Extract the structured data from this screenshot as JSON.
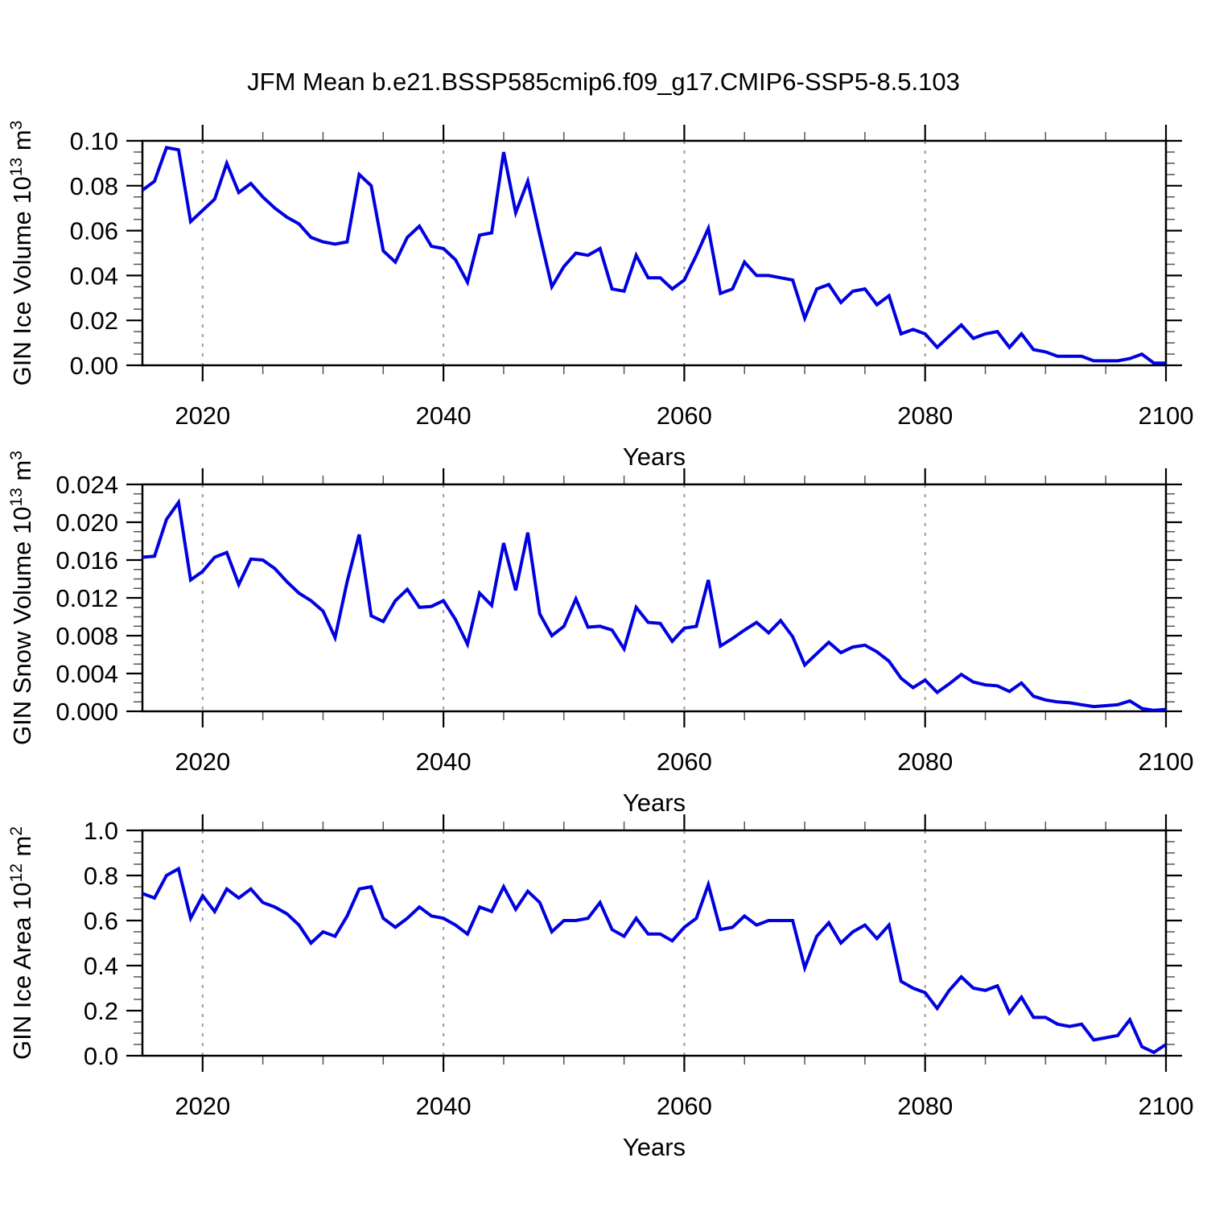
{
  "title": "JFM Mean b.e21.BSSP585cmip6.f09_g17.CMIP6-SSP5-8.5.103",
  "colors": {
    "line": "#0000e0",
    "grid": "#9a9a9a",
    "axis": "#000000",
    "tick_minor": "#555555"
  },
  "chart_data": {
    "type": "line",
    "x_label": "Years",
    "x_range": [
      2015,
      2100
    ],
    "x_major_ticks": [
      2020,
      2040,
      2060,
      2080,
      2100
    ],
    "x_minor_step": 5,
    "grid_x": [
      2020,
      2040,
      2060,
      2080
    ],
    "legend": "none",
    "years": [
      2015,
      2016,
      2017,
      2018,
      2019,
      2020,
      2021,
      2022,
      2023,
      2024,
      2025,
      2026,
      2027,
      2028,
      2029,
      2030,
      2031,
      2032,
      2033,
      2034,
      2035,
      2036,
      2037,
      2038,
      2039,
      2040,
      2041,
      2042,
      2043,
      2044,
      2045,
      2046,
      2047,
      2048,
      2049,
      2050,
      2051,
      2052,
      2053,
      2054,
      2055,
      2056,
      2057,
      2058,
      2059,
      2060,
      2061,
      2062,
      2063,
      2064,
      2065,
      2066,
      2067,
      2068,
      2069,
      2070,
      2071,
      2072,
      2073,
      2074,
      2075,
      2076,
      2077,
      2078,
      2079,
      2080,
      2081,
      2082,
      2083,
      2084,
      2085,
      2086,
      2087,
      2088,
      2089,
      2090,
      2091,
      2092,
      2093,
      2094,
      2095,
      2096,
      2097,
      2098,
      2099,
      2100
    ],
    "panels": [
      {
        "id": "gin-ice-volume",
        "ylabel_text": "GIN Ice Volume 10^13 m^3",
        "ylabel_parts": [
          "GIN Ice Volume 10",
          "13",
          " m",
          "3"
        ],
        "ylim": [
          0,
          0.1
        ],
        "ytick_step": 0.02,
        "yminor_step": 0.005,
        "ydecimals": 2,
        "values": [
          0.078,
          0.082,
          0.097,
          0.096,
          0.064,
          0.069,
          0.074,
          0.09,
          0.077,
          0.081,
          0.075,
          0.07,
          0.066,
          0.063,
          0.057,
          0.055,
          0.054,
          0.055,
          0.085,
          0.08,
          0.051,
          0.046,
          0.057,
          0.062,
          0.053,
          0.052,
          0.047,
          0.037,
          0.058,
          0.059,
          0.095,
          0.068,
          0.082,
          0.058,
          0.035,
          0.044,
          0.05,
          0.049,
          0.052,
          0.034,
          0.033,
          0.049,
          0.039,
          0.039,
          0.034,
          0.038,
          0.049,
          0.061,
          0.032,
          0.034,
          0.046,
          0.04,
          0.04,
          0.039,
          0.038,
          0.021,
          0.034,
          0.036,
          0.028,
          0.033,
          0.034,
          0.027,
          0.031,
          0.014,
          0.016,
          0.014,
          0.008,
          0.013,
          0.018,
          0.012,
          0.014,
          0.015,
          0.008,
          0.014,
          0.007,
          0.006,
          0.004,
          0.004,
          0.004,
          0.002,
          0.002,
          0.002,
          0.003,
          0.005,
          0.001,
          0.001
        ]
      },
      {
        "id": "gin-snow-volume",
        "ylabel_text": "GIN Snow Volume 10^13 m^3",
        "ylabel_parts": [
          "GIN Snow Volume 10",
          "13",
          " m",
          "3"
        ],
        "ylim": [
          0,
          0.024
        ],
        "ytick_step": 0.004,
        "yminor_step": 0.001,
        "ydecimals": 3,
        "values": [
          0.0163,
          0.0164,
          0.0203,
          0.0221,
          0.0139,
          0.0148,
          0.0163,
          0.0168,
          0.0134,
          0.0161,
          0.016,
          0.0151,
          0.0137,
          0.0125,
          0.0117,
          0.0106,
          0.0078,
          0.0137,
          0.0187,
          0.0101,
          0.0095,
          0.0117,
          0.0129,
          0.011,
          0.0111,
          0.0117,
          0.0097,
          0.0071,
          0.0125,
          0.0112,
          0.0178,
          0.0128,
          0.0189,
          0.0103,
          0.008,
          0.009,
          0.0119,
          0.0089,
          0.009,
          0.0086,
          0.0066,
          0.011,
          0.0094,
          0.0093,
          0.0074,
          0.0088,
          0.009,
          0.0139,
          0.0069,
          0.0077,
          0.0086,
          0.0094,
          0.0083,
          0.0096,
          0.0079,
          0.0049,
          0.0061,
          0.0073,
          0.0062,
          0.0068,
          0.007,
          0.0063,
          0.0053,
          0.0035,
          0.0025,
          0.0033,
          0.002,
          0.0029,
          0.0039,
          0.0031,
          0.0028,
          0.0027,
          0.0021,
          0.003,
          0.0016,
          0.0012,
          0.001,
          0.0009,
          0.0007,
          0.0005,
          0.0006,
          0.0007,
          0.0011,
          0.0003,
          0.0001,
          0.0002
        ]
      },
      {
        "id": "gin-ice-area",
        "ylabel_text": "GIN Ice Area 10^12 m^2",
        "ylabel_parts": [
          "GIN Ice Area 10",
          "12",
          " m",
          "2"
        ],
        "ylim": [
          0,
          1.0
        ],
        "ytick_step": 0.2,
        "yminor_step": 0.05,
        "ydecimals": 1,
        "values": [
          0.72,
          0.7,
          0.8,
          0.83,
          0.61,
          0.71,
          0.64,
          0.74,
          0.7,
          0.74,
          0.68,
          0.66,
          0.63,
          0.58,
          0.5,
          0.55,
          0.53,
          0.62,
          0.74,
          0.75,
          0.61,
          0.57,
          0.61,
          0.66,
          0.62,
          0.61,
          0.58,
          0.54,
          0.66,
          0.64,
          0.75,
          0.65,
          0.73,
          0.68,
          0.55,
          0.6,
          0.6,
          0.61,
          0.68,
          0.56,
          0.53,
          0.61,
          0.54,
          0.54,
          0.51,
          0.57,
          0.61,
          0.76,
          0.56,
          0.57,
          0.62,
          0.58,
          0.6,
          0.6,
          0.6,
          0.39,
          0.53,
          0.59,
          0.5,
          0.55,
          0.58,
          0.52,
          0.58,
          0.33,
          0.3,
          0.28,
          0.21,
          0.29,
          0.35,
          0.3,
          0.29,
          0.31,
          0.19,
          0.26,
          0.17,
          0.17,
          0.14,
          0.13,
          0.14,
          0.07,
          0.08,
          0.09,
          0.16,
          0.04,
          0.015,
          0.05
        ]
      }
    ]
  }
}
